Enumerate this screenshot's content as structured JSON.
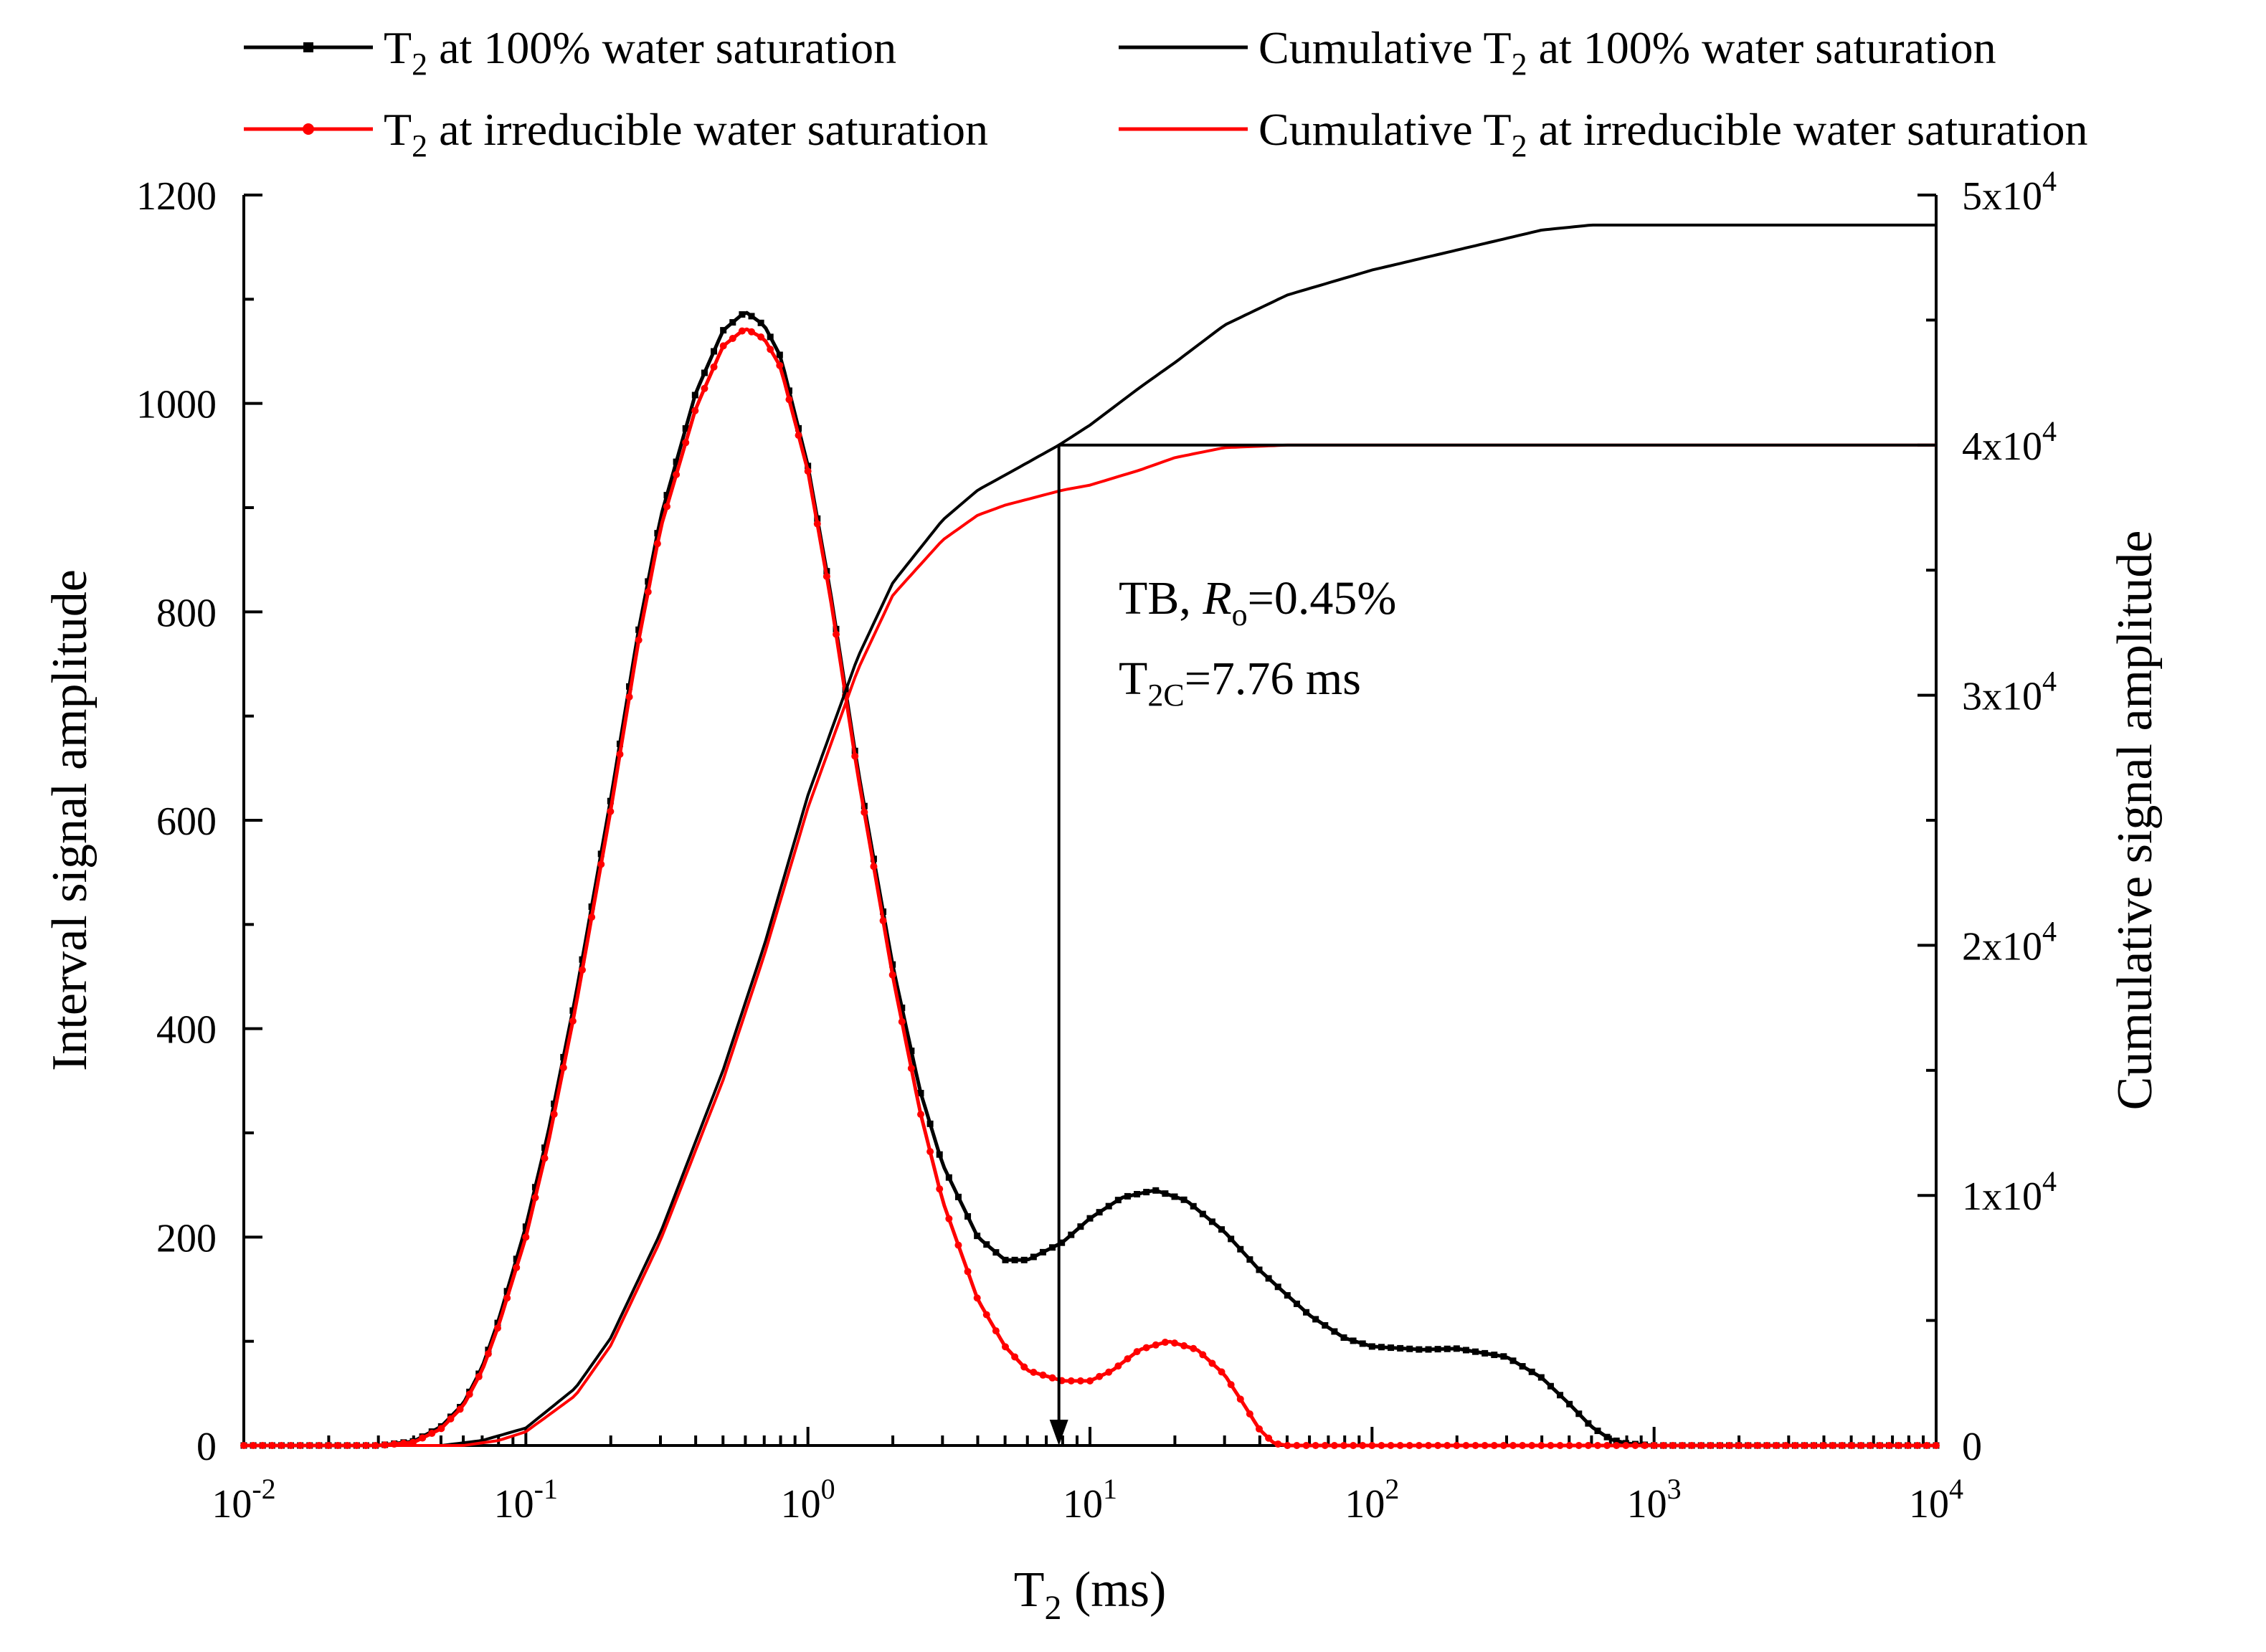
{
  "chart_data": {
    "type": "line",
    "x_scale": "log",
    "xlim": [
      0.01,
      10000
    ],
    "ylim_left": [
      0,
      1200
    ],
    "ylim_right": [
      0,
      50000
    ],
    "xlabel": {
      "main": "T",
      "sub": "2",
      "rest": " (ms)"
    },
    "ylabel_left": "Interval signal amplitude",
    "ylabel_right": "Cumulative signal amplitude",
    "x_ticks": [
      {
        "value": 0.01,
        "base": "10",
        "exp": "-2"
      },
      {
        "value": 0.1,
        "base": "10",
        "exp": "-1"
      },
      {
        "value": 1,
        "base": "10",
        "exp": "0"
      },
      {
        "value": 10,
        "base": "10",
        "exp": "1"
      },
      {
        "value": 100,
        "base": "10",
        "exp": "2"
      },
      {
        "value": 1000,
        "base": "10",
        "exp": "3"
      },
      {
        "value": 10000,
        "base": "10",
        "exp": "4"
      }
    ],
    "y_left_ticks": [
      {
        "value": 0,
        "label": "0"
      },
      {
        "value": 200,
        "label": "200"
      },
      {
        "value": 400,
        "label": "400"
      },
      {
        "value": 600,
        "label": "600"
      },
      {
        "value": 800,
        "label": "800"
      },
      {
        "value": 1000,
        "label": "1000"
      },
      {
        "value": 1200,
        "label": "1200"
      }
    ],
    "y_right_ticks": [
      {
        "value": 0,
        "base": "0",
        "exp": ""
      },
      {
        "value": 10000,
        "base": "1x10",
        "exp": "4"
      },
      {
        "value": 20000,
        "base": "2x10",
        "exp": "4"
      },
      {
        "value": 30000,
        "base": "3x10",
        "exp": "4"
      },
      {
        "value": 40000,
        "base": "4x10",
        "exp": "4"
      },
      {
        "value": 50000,
        "base": "5x10",
        "exp": "4"
      }
    ],
    "series": [
      {
        "id": "t2-100",
        "legend": {
          "pre": "T",
          "sub": "2",
          "post": " at 100% water saturation"
        },
        "color": "#000000",
        "axis": "left",
        "style": "line-markers",
        "points": [
          [
            0.01,
            0
          ],
          [
            0.03,
            0
          ],
          [
            0.04,
            4
          ],
          [
            0.05,
            18
          ],
          [
            0.06,
            40
          ],
          [
            0.07,
            75
          ],
          [
            0.08,
            120
          ],
          [
            0.1,
            210
          ],
          [
            0.12,
            300
          ],
          [
            0.15,
            430
          ],
          [
            0.2,
            620
          ],
          [
            0.25,
            780
          ],
          [
            0.3,
            890
          ],
          [
            0.4,
            1010
          ],
          [
            0.5,
            1070
          ],
          [
            0.6,
            1088
          ],
          [
            0.7,
            1075
          ],
          [
            0.8,
            1045
          ],
          [
            1.0,
            940
          ],
          [
            1.2,
            820
          ],
          [
            1.5,
            650
          ],
          [
            2.0,
            460
          ],
          [
            2.5,
            340
          ],
          [
            3.0,
            270
          ],
          [
            4.0,
            200
          ],
          [
            5.0,
            178
          ],
          [
            6.0,
            178
          ],
          [
            8.0,
            195
          ],
          [
            10.0,
            218
          ],
          [
            13.0,
            238
          ],
          [
            17.0,
            245
          ],
          [
            22.0,
            235
          ],
          [
            30.0,
            205
          ],
          [
            40.0,
            168
          ],
          [
            60.0,
            125
          ],
          [
            80.0,
            103
          ],
          [
            100.0,
            95
          ],
          [
            150.0,
            92
          ],
          [
            200.0,
            93
          ],
          [
            300.0,
            85
          ],
          [
            400.0,
            65
          ],
          [
            500.0,
            40
          ],
          [
            600.0,
            18
          ],
          [
            700.0,
            6
          ],
          [
            800.0,
            2
          ],
          [
            1000.0,
            0
          ],
          [
            10000,
            0
          ]
        ]
      },
      {
        "id": "t2-irr",
        "legend": {
          "pre": "T",
          "sub": "2",
          "post": " at irreducible water saturation"
        },
        "color": "#ff0000",
        "axis": "left",
        "style": "line-markers",
        "points": [
          [
            0.01,
            0
          ],
          [
            0.03,
            0
          ],
          [
            0.04,
            3
          ],
          [
            0.05,
            16
          ],
          [
            0.06,
            38
          ],
          [
            0.07,
            72
          ],
          [
            0.08,
            115
          ],
          [
            0.1,
            200
          ],
          [
            0.12,
            290
          ],
          [
            0.15,
            420
          ],
          [
            0.2,
            610
          ],
          [
            0.25,
            770
          ],
          [
            0.3,
            880
          ],
          [
            0.4,
            995
          ],
          [
            0.5,
            1055
          ],
          [
            0.6,
            1072
          ],
          [
            0.7,
            1062
          ],
          [
            0.8,
            1035
          ],
          [
            1.0,
            935
          ],
          [
            1.2,
            815
          ],
          [
            1.5,
            645
          ],
          [
            2.0,
            450
          ],
          [
            2.5,
            320
          ],
          [
            3.0,
            235
          ],
          [
            4.0,
            140
          ],
          [
            5.0,
            95
          ],
          [
            6.0,
            72
          ],
          [
            8.0,
            62
          ],
          [
            10.0,
            62
          ],
          [
            12.0,
            72
          ],
          [
            15.0,
            92
          ],
          [
            19.0,
            100
          ],
          [
            24.0,
            92
          ],
          [
            30.0,
            68
          ],
          [
            35.0,
            40
          ],
          [
            40.0,
            15
          ],
          [
            45.0,
            2
          ],
          [
            50.0,
            0
          ],
          [
            10000,
            0
          ]
        ]
      },
      {
        "id": "cum-100",
        "legend": {
          "pre": "Cumulative T",
          "sub": "2",
          "post": " at 100% water saturation"
        },
        "color": "#000000",
        "axis": "right",
        "style": "line",
        "points": [
          [
            0.01,
            0
          ],
          [
            0.05,
            0
          ],
          [
            0.07,
            200
          ],
          [
            0.1,
            700
          ],
          [
            0.15,
            2300
          ],
          [
            0.2,
            4300
          ],
          [
            0.3,
            8500
          ],
          [
            0.5,
            15000
          ],
          [
            0.7,
            20000
          ],
          [
            1.0,
            26000
          ],
          [
            1.5,
            31500
          ],
          [
            2.0,
            34500
          ],
          [
            3.0,
            37000
          ],
          [
            4.0,
            38200
          ],
          [
            5.0,
            38800
          ],
          [
            7.76,
            40000
          ],
          [
            10.0,
            40800
          ],
          [
            15.0,
            42300
          ],
          [
            20.0,
            43300
          ],
          [
            30.0,
            44800
          ],
          [
            50.0,
            46000
          ],
          [
            100.0,
            47000
          ],
          [
            200.0,
            47800
          ],
          [
            400.0,
            48600
          ],
          [
            600.0,
            48800
          ],
          [
            10000,
            48800
          ]
        ]
      },
      {
        "id": "cum-irr",
        "legend": {
          "pre": "Cumulative T",
          "sub": "2",
          "post": " at irreducible water saturation"
        },
        "color": "#ff0000",
        "axis": "right",
        "style": "line",
        "points": [
          [
            0.01,
            0
          ],
          [
            0.06,
            0
          ],
          [
            0.08,
            200
          ],
          [
            0.1,
            550
          ],
          [
            0.15,
            2000
          ],
          [
            0.2,
            4000
          ],
          [
            0.3,
            8200
          ],
          [
            0.5,
            14600
          ],
          [
            0.7,
            19600
          ],
          [
            1.0,
            25500
          ],
          [
            1.5,
            31000
          ],
          [
            2.0,
            34000
          ],
          [
            3.0,
            36200
          ],
          [
            4.0,
            37200
          ],
          [
            5.0,
            37600
          ],
          [
            8.0,
            38200
          ],
          [
            10.0,
            38400
          ],
          [
            15.0,
            39000
          ],
          [
            20.0,
            39500
          ],
          [
            30.0,
            39900
          ],
          [
            50.0,
            40000
          ],
          [
            10000,
            40000
          ]
        ]
      }
    ],
    "cutoff": {
      "value": 7.76,
      "level_right": 40000,
      "line1": {
        "a": "TB, ",
        "italic": "R",
        "sub": "o",
        "b": "=0.45%"
      },
      "line2": {
        "a": "T",
        "sub": "2C",
        "b": "=7.76 ms"
      }
    }
  }
}
